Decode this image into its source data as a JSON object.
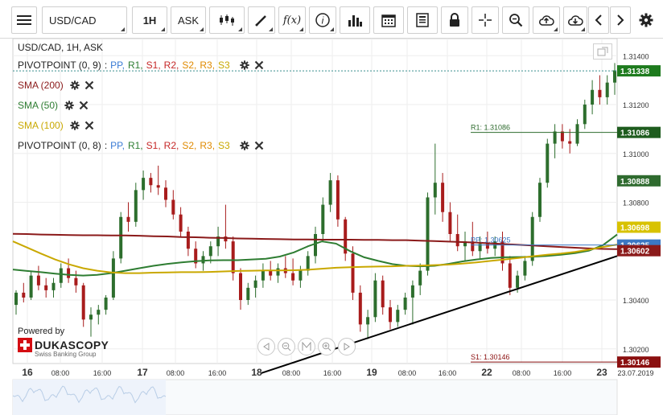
{
  "toolbar": {
    "menu_icon": "hamburger-icon",
    "symbol": "USD/CAD",
    "timeframe": "1H",
    "price_side": "ASK",
    "buttons": [
      "candles-icon",
      "draw-line-icon",
      "function-icon",
      "info-icon",
      "volume-bars-icon",
      "calendar-icon",
      "document-icon",
      "lock-icon",
      "crosshair-icon",
      "zoom-icon",
      "cloud-upload-icon",
      "cloud-download-icon",
      "chevron-left-icon",
      "chevron-right-icon",
      "gear-icon"
    ],
    "function_label": "f(x)"
  },
  "chart_header": {
    "title": "USD/CAD, 1H, ASK"
  },
  "indicators": [
    {
      "name": "PIVOTPOINT (0, 9)",
      "parts": [
        ":",
        "PP,",
        "R1,",
        "S1,",
        "R2,",
        "S2,",
        "R3,",
        "S3"
      ],
      "colors": [
        "#222222",
        "#3a7bd5",
        "#2e7d32",
        "#c62828",
        "#c62828",
        "#e08a00",
        "#e08a00",
        "#c9a800"
      ]
    },
    {
      "name": "SMA (200)",
      "color": "#8b1a1a"
    },
    {
      "name": "SMA (50)",
      "color": "#2e7d32"
    },
    {
      "name": "SMA (100)",
      "color": "#c9a800"
    },
    {
      "name": "PIVOTPOINT (0, 8)",
      "parts": [
        ":",
        "PP,",
        "R1,",
        "S1,",
        "R2,",
        "S2,",
        "R3,",
        "S3"
      ],
      "colors": [
        "#222222",
        "#3a7bd5",
        "#2e7d32",
        "#c62828",
        "#c62828",
        "#e08a00",
        "#e08a00",
        "#c9a800"
      ]
    }
  ],
  "powered_by": {
    "label": "Powered by",
    "brand": "DUKASCOPY",
    "subtitle": "Swiss Banking Group"
  },
  "chart_data": {
    "type": "candlestick",
    "symbol": "USD/CAD",
    "timeframe": "1H",
    "ylim": [
      1.3014,
      1.3147
    ],
    "price_ticks": [
      "1.31400",
      "1.31200",
      "1.31000",
      "1.30800",
      "1.30400",
      "1.30200"
    ],
    "time_ticks": [
      "16",
      "08:00",
      "16:00",
      "17",
      "08:00",
      "16:00",
      "18",
      "08:00",
      "16:00",
      "19",
      "08:00",
      "16:00",
      "22",
      "08:00",
      "16:00",
      "23",
      "23.07.2019"
    ],
    "price_labels": [
      {
        "text": "1.31338",
        "color": "#1e7b1e",
        "value": 1.31338
      },
      {
        "text": "1.31086",
        "color": "#1e5c1e",
        "value": 1.31086
      },
      {
        "text": "1.30888",
        "color": "#2f6b2f",
        "value": 1.30888
      },
      {
        "text": "1.30698",
        "color": "#d8c200",
        "value": 1.30698
      },
      {
        "text": "1.30625",
        "color": "#3b78c4",
        "value": 1.30625
      },
      {
        "text": "1.30602",
        "color": "#8b1a1a",
        "value": 1.30602
      },
      {
        "text": "1.30146",
        "color": "#8b1010",
        "value": 1.30146
      }
    ],
    "pivot_lines": [
      {
        "label": "R1: 1.31086",
        "value": 1.31086,
        "color": "#2e6b2e"
      },
      {
        "label": "PP: 1.30625",
        "value": 1.30625,
        "color": "#3b78c4"
      },
      {
        "label": "S1: 1.30146",
        "value": 1.30146,
        "color": "#8b1010"
      }
    ],
    "candles": [
      [
        1.3038,
        1.3044,
        1.3034,
        1.3043
      ],
      [
        1.3043,
        1.3047,
        1.3039,
        1.3041
      ],
      [
        1.3041,
        1.3052,
        1.304,
        1.305
      ],
      [
        1.305,
        1.3054,
        1.3044,
        1.3046
      ],
      [
        1.3046,
        1.3049,
        1.3041,
        1.3044
      ],
      [
        1.3044,
        1.3049,
        1.3041,
        1.3047
      ],
      [
        1.3047,
        1.3055,
        1.3045,
        1.3053
      ],
      [
        1.3053,
        1.3057,
        1.3047,
        1.3049
      ],
      [
        1.3049,
        1.3052,
        1.3043,
        1.3046
      ],
      [
        1.3046,
        1.3047,
        1.3029,
        1.3032
      ],
      [
        1.3032,
        1.3037,
        1.3025,
        1.3034
      ],
      [
        1.3034,
        1.3038,
        1.303,
        1.3036
      ],
      [
        1.3036,
        1.3042,
        1.3034,
        1.3041
      ],
      [
        1.3041,
        1.306,
        1.304,
        1.3057
      ],
      [
        1.3057,
        1.3076,
        1.3055,
        1.3074
      ],
      [
        1.3074,
        1.308,
        1.3068,
        1.3072
      ],
      [
        1.3072,
        1.3088,
        1.307,
        1.3085
      ],
      [
        1.3085,
        1.3093,
        1.3081,
        1.309
      ],
      [
        1.309,
        1.3092,
        1.3084,
        1.3087
      ],
      [
        1.3087,
        1.3095,
        1.3083,
        1.3086
      ],
      [
        1.3086,
        1.3089,
        1.3078,
        1.3081
      ],
      [
        1.3081,
        1.3085,
        1.3073,
        1.3075
      ],
      [
        1.3075,
        1.3078,
        1.3066,
        1.3068
      ],
      [
        1.3068,
        1.307,
        1.3058,
        1.3061
      ],
      [
        1.3061,
        1.3064,
        1.3053,
        1.3055
      ],
      [
        1.3055,
        1.306,
        1.3052,
        1.3058
      ],
      [
        1.3058,
        1.3064,
        1.3055,
        1.3062
      ],
      [
        1.3062,
        1.307,
        1.3058,
        1.3066
      ],
      [
        1.3066,
        1.3079,
        1.3061,
        1.3064
      ],
      [
        1.3064,
        1.3066,
        1.3048,
        1.3051
      ],
      [
        1.3051,
        1.3053,
        1.3036,
        1.304
      ],
      [
        1.304,
        1.3047,
        1.3038,
        1.3045
      ],
      [
        1.3045,
        1.305,
        1.3041,
        1.3048
      ],
      [
        1.3048,
        1.3055,
        1.3045,
        1.3052
      ],
      [
        1.3052,
        1.3056,
        1.3048,
        1.305
      ],
      [
        1.305,
        1.3055,
        1.3047,
        1.3053
      ],
      [
        1.3053,
        1.3058,
        1.3049,
        1.3051
      ],
      [
        1.3051,
        1.3057,
        1.3046,
        1.3048
      ],
      [
        1.3048,
        1.3054,
        1.3045,
        1.3052
      ],
      [
        1.3052,
        1.306,
        1.305,
        1.3058
      ],
      [
        1.3058,
        1.307,
        1.3055,
        1.3067
      ],
      [
        1.3067,
        1.3082,
        1.3064,
        1.3079
      ],
      [
        1.3079,
        1.3092,
        1.3076,
        1.3089
      ],
      [
        1.3089,
        1.3091,
        1.307,
        1.3073
      ],
      [
        1.3073,
        1.3074,
        1.3056,
        1.3059
      ],
      [
        1.3059,
        1.3062,
        1.304,
        1.3043
      ],
      [
        1.3043,
        1.3046,
        1.3027,
        1.303
      ],
      [
        1.303,
        1.3036,
        1.3024,
        1.3033
      ],
      [
        1.3033,
        1.3051,
        1.3031,
        1.3048
      ],
      [
        1.3048,
        1.305,
        1.3034,
        1.3037
      ],
      [
        1.3037,
        1.304,
        1.3028,
        1.3031
      ],
      [
        1.3031,
        1.3038,
        1.3029,
        1.3036
      ],
      [
        1.3036,
        1.3043,
        1.3034,
        1.3041
      ],
      [
        1.3041,
        1.3048,
        1.303,
        1.3046
      ],
      [
        1.3046,
        1.3055,
        1.3042,
        1.3052
      ],
      [
        1.3052,
        1.3084,
        1.305,
        1.3082
      ],
      [
        1.3082,
        1.3104,
        1.3075,
        1.3088
      ],
      [
        1.3088,
        1.3092,
        1.3072,
        1.3076
      ],
      [
        1.3076,
        1.308,
        1.3064,
        1.3067
      ],
      [
        1.3067,
        1.3075,
        1.306,
        1.3062
      ],
      [
        1.3062,
        1.3068,
        1.3056,
        1.3064
      ],
      [
        1.3064,
        1.3072,
        1.3058,
        1.306
      ],
      [
        1.306,
        1.3066,
        1.3057,
        1.3063
      ],
      [
        1.3063,
        1.3068,
        1.3059,
        1.3061
      ],
      [
        1.3061,
        1.3066,
        1.3058,
        1.3064
      ],
      [
        1.3064,
        1.3068,
        1.3052,
        1.3055
      ],
      [
        1.3055,
        1.3058,
        1.3042,
        1.3045
      ],
      [
        1.3045,
        1.3052,
        1.3043,
        1.305
      ],
      [
        1.305,
        1.3058,
        1.3048,
        1.3056
      ],
      [
        1.3056,
        1.3076,
        1.3054,
        1.3074
      ],
      [
        1.3074,
        1.309,
        1.3072,
        1.3088
      ],
      [
        1.3088,
        1.3106,
        1.3086,
        1.3104
      ],
      [
        1.3104,
        1.3112,
        1.3098,
        1.3109
      ],
      [
        1.3109,
        1.3112,
        1.3102,
        1.3105
      ],
      [
        1.3105,
        1.311,
        1.31,
        1.3104
      ],
      [
        1.3104,
        1.3114,
        1.3103,
        1.3112
      ],
      [
        1.3112,
        1.3122,
        1.311,
        1.312
      ],
      [
        1.312,
        1.313,
        1.3116,
        1.3126
      ],
      [
        1.3126,
        1.3132,
        1.312,
        1.3123
      ],
      [
        1.3123,
        1.3132,
        1.312,
        1.3129
      ],
      [
        1.3129,
        1.3137,
        1.3124,
        1.3134
      ]
    ],
    "sma200": [
      1.30671,
      1.3067,
      1.30668,
      1.30667,
      1.30666,
      1.30665,
      1.30665,
      1.30664,
      1.30664,
      1.30663,
      1.30661,
      1.3066,
      1.30658,
      1.30657,
      1.30655,
      1.30654,
      1.30652,
      1.30651,
      1.3065,
      1.30649,
      1.30648,
      1.30648,
      1.30647,
      1.30647,
      1.30647,
      1.30646,
      1.30646,
      1.30645,
      1.30645,
      1.30643,
      1.30641,
      1.30639,
      1.30637,
      1.30635,
      1.30632,
      1.30629,
      1.30626,
      1.30623,
      1.3062,
      1.30617,
      1.30614,
      1.30611,
      1.30609,
      1.30608
    ],
    "sma50": [
      1.30525,
      1.30519,
      1.30514,
      1.30508,
      1.30503,
      1.305,
      1.30503,
      1.3051,
      1.3052,
      1.3053,
      1.3054,
      1.30548,
      1.30554,
      1.30559,
      1.30562,
      1.30563,
      1.30563,
      1.30566,
      1.30569,
      1.30578,
      1.30595,
      1.3062,
      1.3064,
      1.30631,
      1.306,
      1.30575,
      1.3056,
      1.30547,
      1.3054,
      1.30538,
      1.3054,
      1.30548,
      1.30558,
      1.30566,
      1.30572,
      1.30575,
      1.30576,
      1.30577,
      1.3058,
      1.30585,
      1.30592,
      1.30602,
      1.30625,
      1.30668
    ],
    "sma100": [
      1.3064,
      1.30615,
      1.3059,
      1.30566,
      1.30546,
      1.3053,
      1.3052,
      1.30513,
      1.3051,
      1.3051,
      1.30512,
      1.30513,
      1.30514,
      1.30514,
      1.30515,
      1.30517,
      1.30519,
      1.3052,
      1.30521,
      1.30521,
      1.30522,
      1.30524,
      1.30528,
      1.30532,
      1.30534,
      1.30536,
      1.30537,
      1.30538,
      1.3054,
      1.30541,
      1.30543,
      1.30545,
      1.30549,
      1.30554,
      1.3056,
      1.30566,
      1.30572,
      1.30579,
      1.30585,
      1.3059,
      1.30597,
      1.30606,
      1.30617,
      1.30627
    ],
    "trendline": {
      "from": [
        0.41,
        1.301
      ],
      "to": [
        1.0,
        1.3058
      ]
    },
    "colors": {
      "up": "#2d6e2d",
      "down": "#a81c1c",
      "sma200": "#8b1a1a",
      "sma50": "#2e7d32",
      "sma100": "#c9a800",
      "grid": "#eeeeee"
    }
  }
}
